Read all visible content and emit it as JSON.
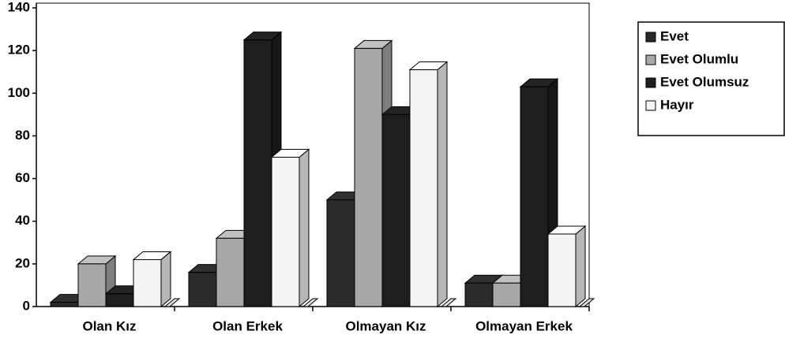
{
  "chart_data": {
    "type": "bar3d",
    "categories": [
      "Olan Kız",
      "Olan Erkek",
      "Olmayan Kız",
      "Olmayan Erkek"
    ],
    "series": [
      {
        "name": "Evet",
        "color": "#2a2a2a",
        "values": [
          2,
          16,
          50,
          11
        ]
      },
      {
        "name": "Evet Olumlu",
        "color": "#a8a8a8",
        "values": [
          20,
          32,
          121,
          11
        ]
      },
      {
        "name": "Evet Olumsuz",
        "color": "#1e1e1e",
        "values": [
          6,
          125,
          90,
          103
        ]
      },
      {
        "name": "Hayır",
        "color": "#f4f4f4",
        "values": [
          22,
          70,
          111,
          34
        ]
      }
    ],
    "ylim": [
      0,
      140
    ],
    "yticks": [
      0,
      20,
      40,
      60,
      80,
      100,
      120,
      140
    ],
    "legend": "right"
  }
}
